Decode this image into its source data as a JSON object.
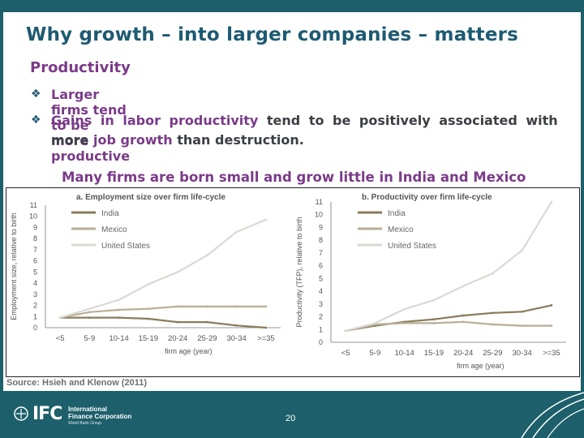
{
  "slide": {
    "title": "Why growth – into larger companies – matters",
    "section": "Productivity",
    "bullet1": "Larger firms tend to be more productive",
    "bullet2_hl": "Gains in labor productivity",
    "bullet2_rest": " tend to be positively associated with",
    "bullet2_line2_a": "more ",
    "bullet2_line2_hl": "job growth",
    "bullet2_line2_b": " than destruction.",
    "subtitle": "Many firms are born small and grow little in India and Mexico",
    "source": "Source: Hsieh and Klenow (2011)",
    "page_number": "20"
  },
  "footer": {
    "logo": "IFC",
    "org_line1": "International",
    "org_line2": "Finance Corporation",
    "org_sub": "World Bank Group"
  },
  "colors": {
    "brand": "#1d5f6a",
    "title": "#1e5a72",
    "highlight": "#7a3b88",
    "india": "#8a7b5a",
    "mexico": "#b9ae96",
    "united_states": "#d9d9d4"
  },
  "chart_data": [
    {
      "type": "line",
      "title": "a. Employment size over firm life-cycle",
      "xlabel": "firm age (year)",
      "ylabel": "Employment size, relative to birth",
      "categories": [
        "<5",
        "5-9",
        "10-14",
        "15-19",
        "20-24",
        "25-29",
        "30-34",
        ">=35"
      ],
      "ylim": [
        0,
        11
      ],
      "yticks": [
        "0",
        "1",
        "2",
        "3",
        "4",
        "5",
        "6",
        "7",
        "8",
        "9",
        "10",
        "11"
      ],
      "legend": "top-left",
      "series": [
        {
          "name": "India",
          "color": "#8a7b5a",
          "values": [
            0.9,
            0.9,
            0.9,
            0.8,
            0.5,
            0.5,
            0.2,
            0.0
          ]
        },
        {
          "name": "Mexico",
          "color": "#b9ae96",
          "values": [
            0.9,
            1.4,
            1.6,
            1.7,
            1.9,
            1.9,
            1.9,
            1.9
          ]
        },
        {
          "name": "United States",
          "color": "#d9d9d4",
          "values": [
            0.9,
            1.7,
            2.5,
            3.9,
            5.0,
            6.5,
            8.6,
            9.7
          ]
        }
      ]
    },
    {
      "type": "line",
      "title": "b. Productivity over firm life-cycle",
      "xlabel": "firm age (year)",
      "ylabel": "Productivity (TFP), relative to birth",
      "categories": [
        "<5",
        "5-9",
        "10-14",
        "15-19",
        "20-24",
        "25-29",
        "30-34",
        ">=35"
      ],
      "ylim": [
        0,
        11
      ],
      "yticks": [
        "0",
        "1",
        "2",
        "3",
        "4",
        "5",
        "6",
        "7",
        "8",
        "9",
        "10",
        "11"
      ],
      "legend": "top-left",
      "series": [
        {
          "name": "India",
          "color": "#8a7b5a",
          "values": [
            0.9,
            1.3,
            1.6,
            1.8,
            2.1,
            2.3,
            2.4,
            2.9
          ]
        },
        {
          "name": "Mexico",
          "color": "#b9ae96",
          "values": [
            0.9,
            1.4,
            1.5,
            1.5,
            1.6,
            1.4,
            1.3,
            1.3
          ]
        },
        {
          "name": "United States",
          "color": "#d9d9d4",
          "values": [
            0.9,
            1.5,
            2.6,
            3.3,
            4.4,
            5.4,
            7.2,
            11.0
          ]
        }
      ]
    }
  ]
}
